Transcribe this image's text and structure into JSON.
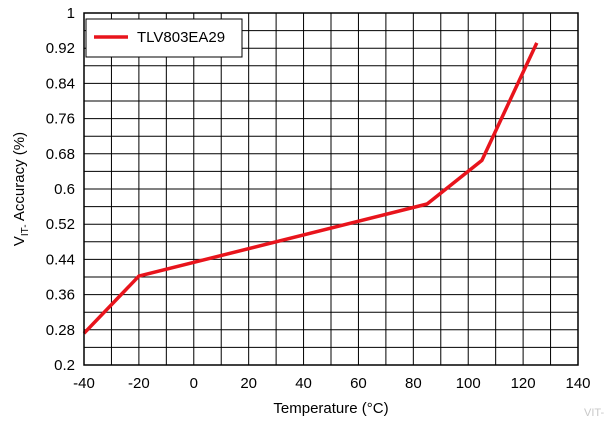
{
  "chart_data": {
    "type": "line",
    "title": "",
    "xlabel": "Temperature (°C)",
    "ylabel_main": "V",
    "ylabel_sub": "IT-",
    "ylabel_rest": " Accuracy (%)",
    "xlim": [
      -40,
      140
    ],
    "ylim": [
      0.2,
      1.0
    ],
    "x_ticks": [
      -40,
      -20,
      0,
      20,
      40,
      60,
      80,
      100,
      120,
      140
    ],
    "x_tick_labels": [
      "-40",
      "-20",
      "0",
      "20",
      "40",
      "60",
      "80",
      "100",
      "120",
      "140"
    ],
    "y_ticks": [
      0.2,
      0.28,
      0.36,
      0.44,
      0.52,
      0.6,
      0.68,
      0.76,
      0.84,
      0.92,
      1.0
    ],
    "y_tick_labels": [
      "0.2",
      "0.28",
      "0.36",
      "0.44",
      "0.52",
      "0.6",
      "0.68",
      "0.76",
      "0.84",
      "0.92",
      "1"
    ],
    "x_minor_step": 10,
    "y_minor_step": 0.04,
    "grid": true,
    "legend_position": "top-left",
    "series": [
      {
        "name": "TLV803EA29",
        "color": "#e8141c",
        "x": [
          -40,
          -20,
          85,
          105,
          125
        ],
        "y": [
          0.272,
          0.402,
          0.566,
          0.665,
          0.932
        ]
      }
    ],
    "watermark": "VIT-"
  }
}
